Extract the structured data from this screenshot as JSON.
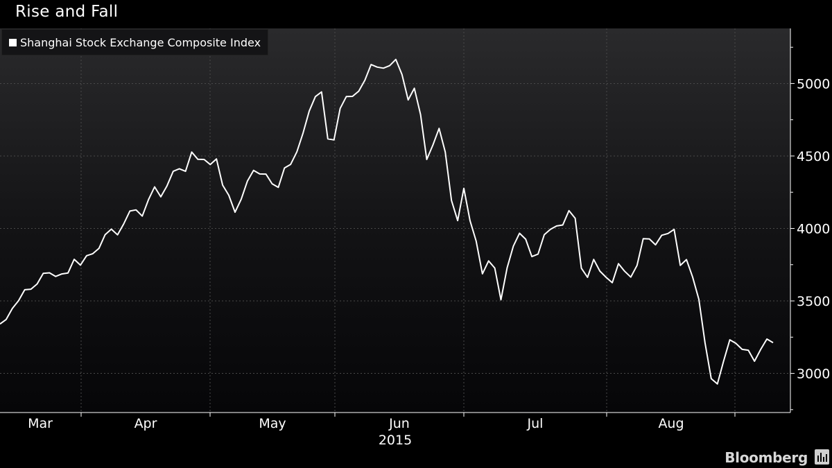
{
  "header": {
    "title": "Rise and Fall"
  },
  "brand": {
    "name": "Bloomberg"
  },
  "chart_data": {
    "type": "line",
    "title": "Rise and Fall",
    "xlabel": "2015",
    "ylabel": "",
    "ylim": [
      2730,
      5380
    ],
    "y_ticks": [
      "3000",
      "3500",
      "4000",
      "4500",
      "5000"
    ],
    "x_tick_labels": [
      "Mar",
      "Apr",
      "May",
      "Jun",
      "Jul",
      "Aug"
    ],
    "x_year_label": "2015",
    "grid": true,
    "legend_position": "top-left",
    "series": [
      {
        "name": "Shanghai Stock Exchange Composite Index",
        "color": "#ffffff",
        "values": [
          3341,
          3372,
          3448,
          3502,
          3577,
          3581,
          3617,
          3690,
          3694,
          3669,
          3686,
          3693,
          3787,
          3747,
          3812,
          3826,
          3862,
          3957,
          3995,
          3956,
          4031,
          4120,
          4128,
          4085,
          4198,
          4287,
          4218,
          4293,
          4394,
          4412,
          4394,
          4527,
          4477,
          4476,
          4441,
          4480,
          4299,
          4229,
          4112,
          4202,
          4326,
          4401,
          4376,
          4375,
          4308,
          4283,
          4417,
          4442,
          4529,
          4658,
          4810,
          4910,
          4942,
          4618,
          4611,
          4828,
          4910,
          4911,
          4947,
          5023,
          5131,
          5113,
          5106,
          5123,
          5166,
          5062,
          4887,
          4967,
          4785,
          4476,
          4576,
          4690,
          4527,
          4193,
          4054,
          4277,
          4054,
          3912,
          3687,
          3776,
          3727,
          3508,
          3728,
          3878,
          3967,
          3926,
          3806,
          3823,
          3957,
          3994,
          4017,
          4024,
          4123,
          4070,
          3726,
          3663,
          3786,
          3706,
          3663,
          3626,
          3757,
          3705,
          3664,
          3745,
          3929,
          3928,
          3887,
          3953,
          3965,
          3994,
          3745,
          3785,
          3664,
          3510,
          3210,
          2964,
          2927,
          3084,
          3232,
          3207,
          3166,
          3160,
          3084,
          3166,
          3237,
          3212
        ]
      }
    ]
  }
}
